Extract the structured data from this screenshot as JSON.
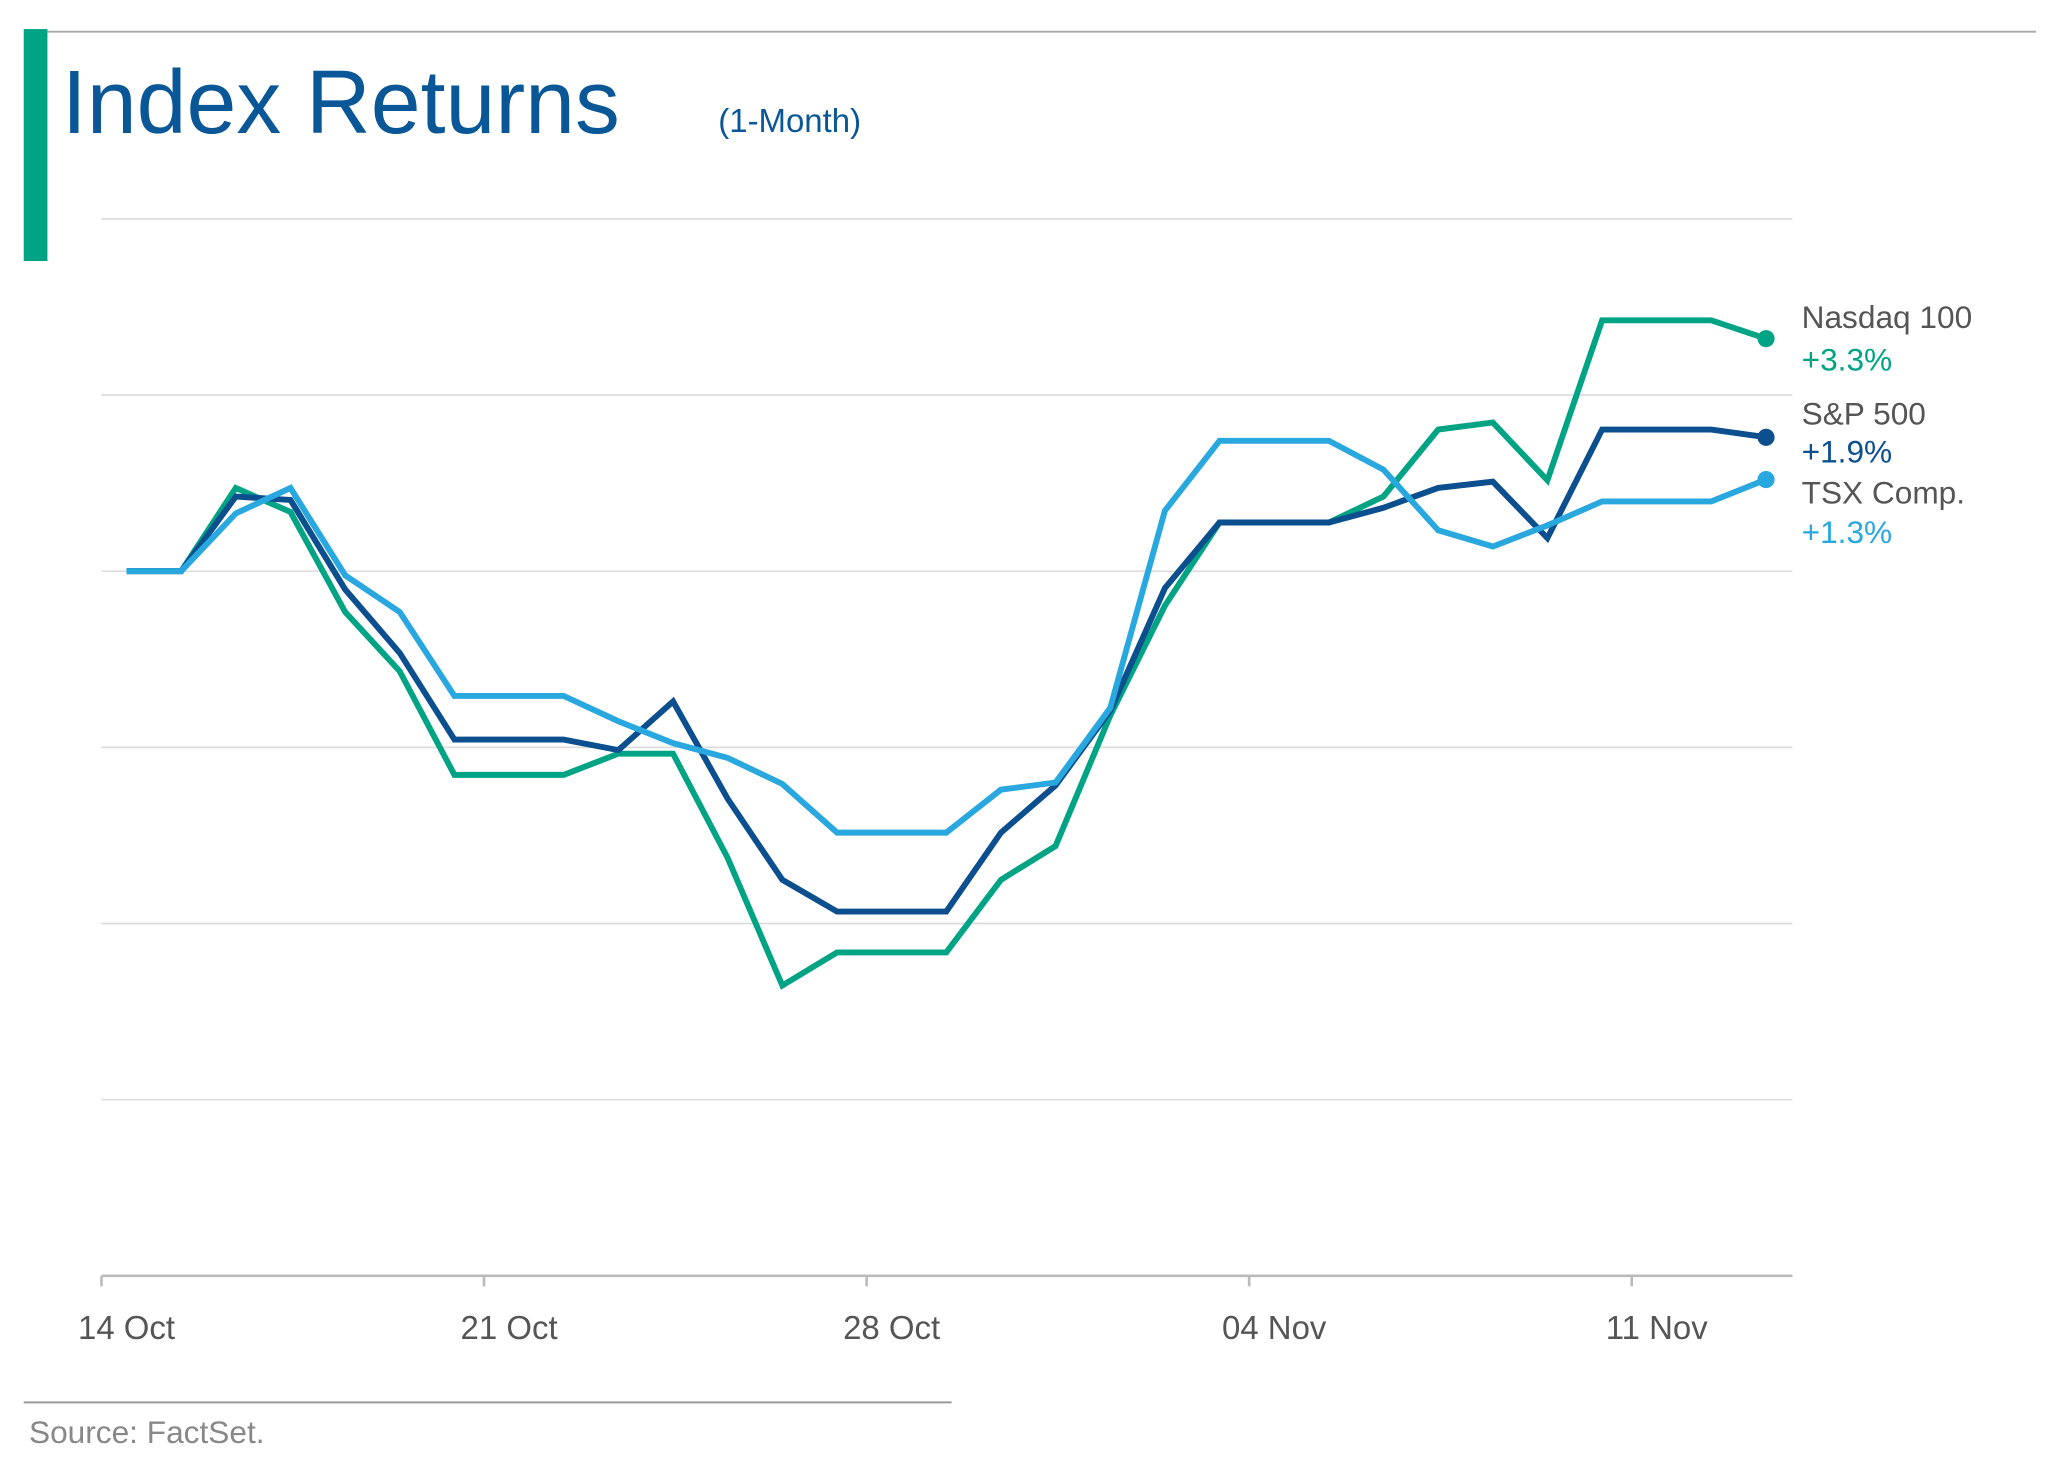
{
  "chart_data": {
    "type": "line",
    "title": "Index Returns",
    "subtitle": "(1-Month)",
    "source": "Source: FactSet.",
    "categories": [
      "14 Oct",
      null,
      null,
      null,
      null,
      null,
      null,
      "21 Oct",
      null,
      null,
      null,
      null,
      null,
      null,
      "28 Oct",
      null,
      null,
      null,
      null,
      null,
      null,
      "04 Nov",
      null,
      null,
      null,
      null,
      null,
      null,
      "11 Nov",
      null,
      null
    ],
    "ylim": [
      -10,
      5
    ],
    "yticks": [
      -10,
      -7.5,
      -5,
      -2.5,
      0,
      2.5,
      5
    ],
    "grid": true,
    "series": [
      {
        "name": "Nasdaq 100",
        "color": "#00a484",
        "end_label": "+3.3%",
        "values": [
          0,
          0,
          1.18,
          0.84,
          -0.58,
          -1.42,
          -2.89,
          -2.89,
          -2.89,
          -2.59,
          -2.59,
          -4.07,
          -5.88,
          -5.41,
          -5.41,
          -5.41,
          -4.38,
          -3.9,
          -2.05,
          -0.49,
          0.69,
          0.69,
          0.69,
          1.06,
          2.01,
          2.11,
          1.29,
          3.56,
          3.56,
          3.56,
          3.3
        ]
      },
      {
        "name": "S&P 500",
        "color": "#0b4f8f",
        "end_label": "+1.9%",
        "values": [
          0,
          0,
          1.06,
          1.01,
          -0.26,
          -1.16,
          -2.39,
          -2.39,
          -2.39,
          -2.54,
          -1.85,
          -3.23,
          -4.38,
          -4.83,
          -4.83,
          -4.83,
          -3.71,
          -3.04,
          -1.98,
          -0.24,
          0.69,
          0.69,
          0.69,
          0.9,
          1.18,
          1.27,
          0.47,
          2.01,
          2.01,
          2.01,
          1.9
        ]
      },
      {
        "name": "TSX Comp.",
        "color": "#29a8e0",
        "end_label": "+1.3%",
        "values": [
          0,
          0,
          0.82,
          1.18,
          -0.06,
          -0.58,
          -1.77,
          -1.77,
          -1.77,
          -2.13,
          -2.44,
          -2.65,
          -3.02,
          -3.71,
          -3.71,
          -3.71,
          -3.1,
          -3.0,
          -1.94,
          0.86,
          1.85,
          1.85,
          1.85,
          1.44,
          0.58,
          0.35,
          0.65,
          0.99,
          0.99,
          0.99,
          1.3
        ]
      }
    ]
  }
}
